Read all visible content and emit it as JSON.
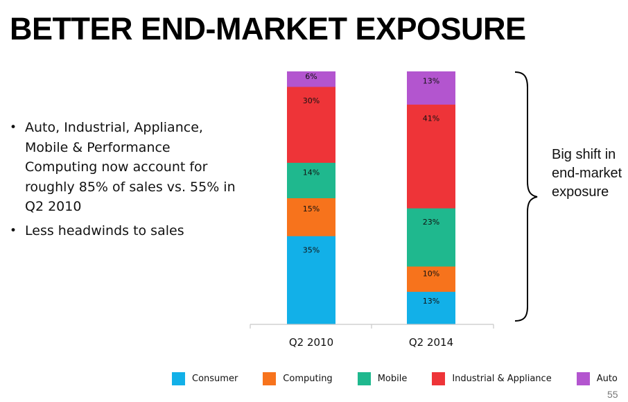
{
  "slide": {
    "title": "BETTER END-MARKET EXPOSURE",
    "bullets": [
      "Auto, Industrial, Appliance, Mobile & Performance Computing now account for roughly 85% of sales vs. 55% in Q2 2010",
      "Less headwinds to sales"
    ],
    "annotation": "Big shift in end-market exposure",
    "page_number": "55"
  },
  "chart_data": {
    "type": "bar",
    "stacked": true,
    "normalized": true,
    "categories": [
      "Q2 2010",
      "Q2 2014"
    ],
    "series": [
      {
        "name": "Consumer",
        "values": [
          35,
          13
        ],
        "labels": [
          "35%",
          "13%"
        ],
        "color": "#12b0e8"
      },
      {
        "name": "Computing",
        "values": [
          15,
          10
        ],
        "labels": [
          "15%",
          "10%"
        ],
        "color": "#f7731c"
      },
      {
        "name": "Mobile",
        "values": [
          14,
          23
        ],
        "labels": [
          "14%",
          "23%"
        ],
        "color": "#1fb88e"
      },
      {
        "name": "Industrial & Appliance",
        "values": [
          30,
          41
        ],
        "labels": [
          "30%",
          "41%"
        ],
        "color": "#ee3438"
      },
      {
        "name": "Auto",
        "values": [
          6,
          13
        ],
        "labels": [
          "6%",
          "13%"
        ],
        "color": "#b355cf"
      }
    ],
    "legend_position": "bottom",
    "grid": false,
    "ylim": [
      0,
      100
    ]
  }
}
